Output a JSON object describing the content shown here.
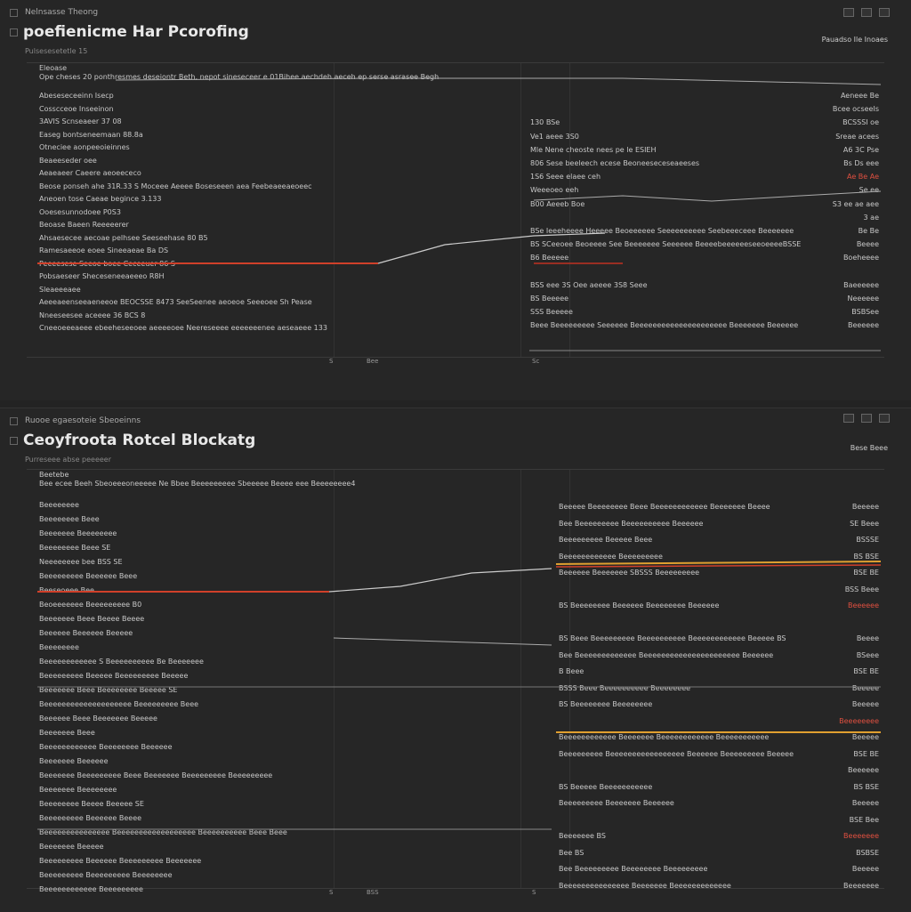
{
  "colors": {
    "background": "#262626",
    "accent_red": "#d0402a",
    "accent_yellow": "#e0a030",
    "line": "#cccccc"
  },
  "panels": [
    {
      "top_label": "Nelnsasse Theong",
      "title": "poefienicme Har Pcorofing",
      "subtitle": "Pulsesesetetle 15",
      "right_label": "Pauadso  Ile Inoaes",
      "header": "Eleoase",
      "lead_text": "Ope cheses 20 ponthresmes deseiontr Beth, nepot sineseceer e 01Bihee aechdeh aeceh ep serse asrasee Begh",
      "left_rows": [
        "Abeseseceeinn Isecp",
        "Cosscceoe Inseeinon",
        "3AVIS Scnseaeer 37 08",
        "Easeg bontseneemaan 88.8a",
        "Otneciee aonpeeoieinnes",
        "Beaeeseder oee",
        "Aeaeaeer Caeere aeoeececo",
        "Beose ponseh ahe 31R.33 S Moceee Aeeee Boseseeen aea Feebeaeeaeoeec",
        "Aneoen tose Caeae begince 3.133",
        "Ooesesunnodoee P0S3",
        "Beoase Baeen Reeeeerer",
        "Ahsaesecee aecoae pelhsee Seeseehase 80 B5",
        "Ramesaeeoe eoee Sineeaeae Ba DS",
        "Peeeesese Seeoe boee Ceceeuer 86 S",
        "Pobsaeseer Sheceseneeaeeeo R8H",
        "Sleaeeeaee",
        "Aeeeaeenseeaeneeoe BEOCSSE 8473 SeeSeenee aeoeoe Seeeoee Sh Pease",
        "Nneeseesee aceeee 36 BCS 8",
        "Cneeoeeeaeee ebeeheseeoee aeeeeoee Neereseeee eeeeeeenee aeseaeee 133"
      ],
      "right_rows": [
        {
          "text": "",
          "value": "Aeneee Be"
        },
        {
          "text": "",
          "value": "Bcee ocseeIs"
        },
        {
          "text": "130 BSe",
          "value": "BCSSSI oe"
        },
        {
          "text": "Ve1 aeee 3S0",
          "value": "Sreae acees"
        },
        {
          "text": "Mle Nene cheoste nees pe le ESIEH",
          "value": "A6 3C Pse"
        },
        {
          "text": "806 Sese beeleech ecese Beoneeseceseaeeses",
          "value": "Bs Ds eee"
        },
        {
          "text": "1S6 Seee elaee ceh",
          "value": "Ae Be Ae"
        },
        {
          "text": "Weeeoeo eeh",
          "value": "Se ee"
        },
        {
          "text": "B00 Aeeeb Boe",
          "value": "S3 ee ae aee"
        },
        {
          "text": "",
          "value": "3 ae"
        },
        {
          "text": "BSe Ieeeheeee Heeeee Beoeeeeee Seeeeeeeeee Seebeeeceee Beeeeeee",
          "value": "Be Be"
        },
        {
          "text": "BS SCeeoee Beoeeee See Beeeeeee Seeeeee BeeeebeeeeeeseeoeeeeBSSE",
          "value": "Beeee"
        },
        {
          "text": "B6 Beeeee",
          "value": "Boeheeee"
        },
        {
          "text": "",
          "value": ""
        },
        {
          "text": "BSS eee 3S  Oee aeeee 3S8 Seee",
          "value": "Baeeeeee"
        },
        {
          "text": "BS Beeeee",
          "value": "Neeeeee"
        },
        {
          "text": "SSS Beeeee",
          "value": "BSBSee"
        },
        {
          "text": "Beee Beeeeeeeee Seeeeee Beeeeeeeeeeeeeeeeeeeee Beeeeeee Beeeeee",
          "value": "Beeeeee"
        }
      ],
      "axis": [
        "S",
        "Bee",
        "Sc"
      ]
    },
    {
      "top_label": "Ruooe egaesoteie Sbeoeinns",
      "title": "Ceoyfroota Rotcel Blockatg",
      "subtitle": "Purreseee abse peeeeer",
      "right_label": "Bese Beee",
      "header": "Beetebe",
      "lead_text": "Bee ecee Beeh Sbeoeeeoneeeee Ne Bbee Beeeeeeeee Sbeeeee Beeee eee Beeeeeeee4",
      "left_rows": [
        "Beeeeeeee",
        "Beeeeeeee Beee",
        "Beeeeeee Beeeeeeee",
        "Beeeeeeee Beee SE",
        "Neeeeeeee bee BSS SE",
        "Beeeeeeeee Beeeeee Beee",
        "Beeseoeee Bee",
        "Beoeeeeeee Beeeeeeeee B0",
        "Beeeeeee Beee Beeee Beeee",
        "Beeeeee Beeeeee Beeeee",
        "Beeeeeeee",
        "Beeeeeeeeeeee S Beeeeeeeeee Be Beeeeeee",
        "Beeeeeeeee Beeeee Beeeeeeeee Beeeee",
        "Beeeeeee Beee Beeeeeeee Beeeee SE",
        "Beeeeeeeeeeeeeeeeeeee Beeeeeeeee Beee",
        "Beeeeee Beee Beeeeeee Beeeee",
        "Beeeeeee Beee",
        "Beeeeeeeeeeee Beeeeeeee Beeeeee",
        "Beeeeeee Beeeeee",
        "Beeeeeee Beeeeeeeee Beee Beeeeeee Beeeeeeeee Beeeeeeeee",
        "Beeeeeee Beeeeeeee",
        "Beeeeeeee Beeee Beeeee SE",
        "Beeeeeeeee Beeeeee Beeee",
        "Beeeeeeeeeeeeeee Beeeeeeeeeeeeeeeeee Beeeeeeeeee Beee Beee",
        "Beeeeeee Beeeee",
        "Beeeeeeeee Beeeeee Beeeeeeeee Beeeeeee",
        "Beeeeeeeee Beeeeeeeee Beeeeeeee",
        "Beeeeeeeeeeee Beeeeeeeee"
      ],
      "right_rows": [
        {
          "text": "Beeeee Beeeeeeee Beee Beeeeeeeeeeee Beeeeeee Beeee",
          "value": "Beeeee"
        },
        {
          "text": "Bee Beeeeeeeee Beeeeeeeeee Beeeeee",
          "value": "SE Beee"
        },
        {
          "text": "Beeeeeeeee Beeeee Beee",
          "value": "BSSSE"
        },
        {
          "text": "Beeeeeeeeeeee Beeeeeeeee",
          "value": "BS BSE"
        },
        {
          "text": "Beeeeee Beeeeeee SBSSS Beeeeeeeee",
          "value": "BSE BE"
        },
        {
          "text": "",
          "value": "BSS Beee"
        },
        {
          "text": "BS Beeeeeeee Beeeeee Beeeeeeee Beeeeee",
          "value": "Beeeeee"
        },
        {
          "text": "",
          "value": ""
        },
        {
          "text": "BS  Beee Beeeeeeeee Beeeeeeeeee Beeeeeeeeeeee Beeeee BS",
          "value": "Beeee"
        },
        {
          "text": "Bee Beeeeeeeeeeeee Beeeeeeeeeeeeeeeeeeeeee Beeeeee",
          "value": "BSeee"
        },
        {
          "text": "B Beee",
          "value": "BSE BE"
        },
        {
          "text": "BSSS Beee Beeeeeeeeee Beeeeeeee",
          "value": "Beeeee"
        },
        {
          "text": "BS Beeeeeeee Beeeeeeee",
          "value": "Beeeee"
        },
        {
          "text": "",
          "value": "Beeeeeeee"
        },
        {
          "text": "Beeeeeeeeeeee Beeeeeee Beeeeeeeeeeee Beeeeeeeeeee",
          "value": "Beeeee"
        },
        {
          "text": "Beeeeeeeee Beeeeeeeeeeeeeeeee Beeeeee Beeeeeeeee Beeeee",
          "value": "BSE BE"
        },
        {
          "text": "",
          "value": "Beeeeee"
        },
        {
          "text": "BS Beeeee Beeeeeeeeeee",
          "value": "BS BSE"
        },
        {
          "text": "Beeeeeeeee Beeeeeee Beeeeee",
          "value": "Beeeee"
        },
        {
          "text": "",
          "value": "BSE Bee"
        },
        {
          "text": "Beeeeeee BS",
          "value": "Beeeeeee"
        },
        {
          "text": "Bee BS",
          "value": "BSBSE"
        },
        {
          "text": "Bee Beeeeeeeee Beeeeeeee Beeeeeeeee",
          "value": "Beeeee"
        },
        {
          "text": "Beeeeeeeeeeeeeee Beeeeeee Beeeeeeeeeeeee",
          "value": "Beeeeeee"
        }
      ],
      "axis": [
        "S",
        "BSS",
        "S"
      ]
    }
  ]
}
